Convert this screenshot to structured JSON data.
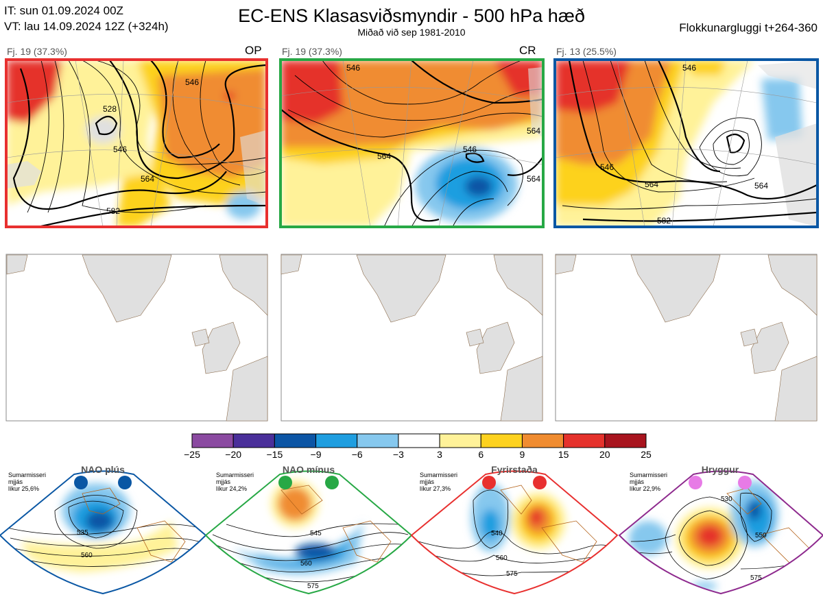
{
  "header": {
    "it": "IT: sun 01.09.2024 00Z",
    "vt": "VT: lau 14.09.2024 12Z  (+324h)",
    "title": "EC-ENS Klasasviðsmyndir - 500 hPa hæð",
    "subtitle": "Miðað við sep 1981-2010",
    "window": "Flokkunargluggi t+264-360"
  },
  "colors": {
    "op_border": "#e8302f",
    "cr_border": "#27a845",
    "c3_border": "#0a57a4",
    "land": "#e0e0e0"
  },
  "panels": [
    {
      "label": "Fj. 19 (37.3%)",
      "tag": "OP",
      "contours": [
        "528",
        "546",
        "546",
        "564",
        "582"
      ]
    },
    {
      "label": "Fj. 19 (37.3%)",
      "tag": "CR",
      "contours": [
        "546",
        "546",
        "564",
        "564",
        "564"
      ]
    },
    {
      "label": "Fj. 13 (25.5%)",
      "tag": "",
      "contours": [
        "546",
        "546",
        "564",
        "564",
        "582"
      ]
    }
  ],
  "chart_data": {
    "type": "heatmap",
    "variable": "500 hPa hæð",
    "colorbar": {
      "ticks": [
        "−25",
        "−20",
        "−15",
        "−9",
        "−6",
        "−3",
        "3",
        "6",
        "9",
        "15",
        "20",
        "25"
      ],
      "colors": [
        "#8b4aa1",
        "#4a2f9a",
        "#0c55a5",
        "#1f9ee0",
        "#86c8ee",
        "#ffffff",
        "#fff299",
        "#fdd21f",
        "#f08c30",
        "#e5322c",
        "#a8141e"
      ]
    }
  },
  "regimes": [
    {
      "name": "NAO plús",
      "season": "Sumarmisseri",
      "qual": "mjjás",
      "prob": "líkur 25,6%",
      "color": "#0a57a4",
      "labels": [
        "535",
        "560"
      ]
    },
    {
      "name": "NAO mínus",
      "season": "Sumarmisseri",
      "qual": "mjjás",
      "prob": "líkur 24,2%",
      "color": "#27a845",
      "labels": [
        "545",
        "560",
        "575"
      ]
    },
    {
      "name": "Fyrirstaða",
      "season": "Sumarmisseri",
      "qual": "mjjás",
      "prob": "líkur 27,3%",
      "color": "#e8302f",
      "labels": [
        "540",
        "560",
        "575"
      ]
    },
    {
      "name": "Hryggur",
      "season": "Sumarmisseri",
      "qual": "mjjás",
      "prob": "líkur 22,9%",
      "color": "#e77be6",
      "labels": [
        "530",
        "550",
        "575"
      ]
    }
  ]
}
